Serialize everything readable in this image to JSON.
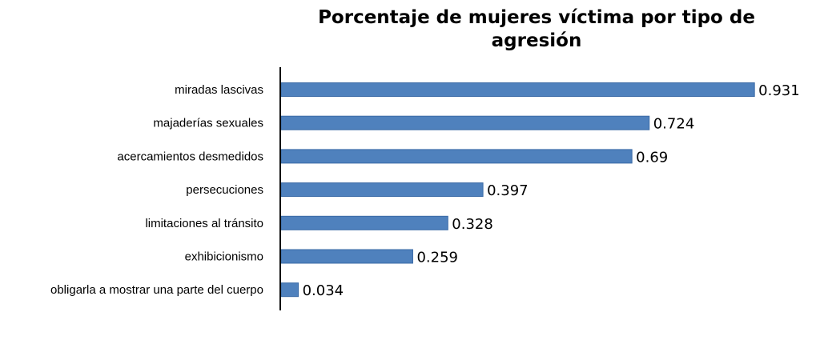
{
  "chart_data": {
    "type": "bar",
    "orientation": "horizontal",
    "title": "Porcentaje de mujeres víctima por tipo de agresión",
    "categories": [
      "miradas lascivas",
      "majaderías sexuales",
      "acercamientos desmedidos",
      "persecuciones",
      "limitaciones al tránsito",
      "exhibicionismo",
      "obligarla a mostrar una parte del cuerpo"
    ],
    "values": [
      0.931,
      0.724,
      0.69,
      0.397,
      0.328,
      0.259,
      0.034
    ],
    "value_labels": [
      "0.931",
      "0.724",
      "0.69",
      "0.397",
      "0.328",
      "0.259",
      "0.034"
    ],
    "xlim": [
      0,
      1
    ],
    "grid": false,
    "legend": "none",
    "bar_color": "#4f81bd"
  }
}
